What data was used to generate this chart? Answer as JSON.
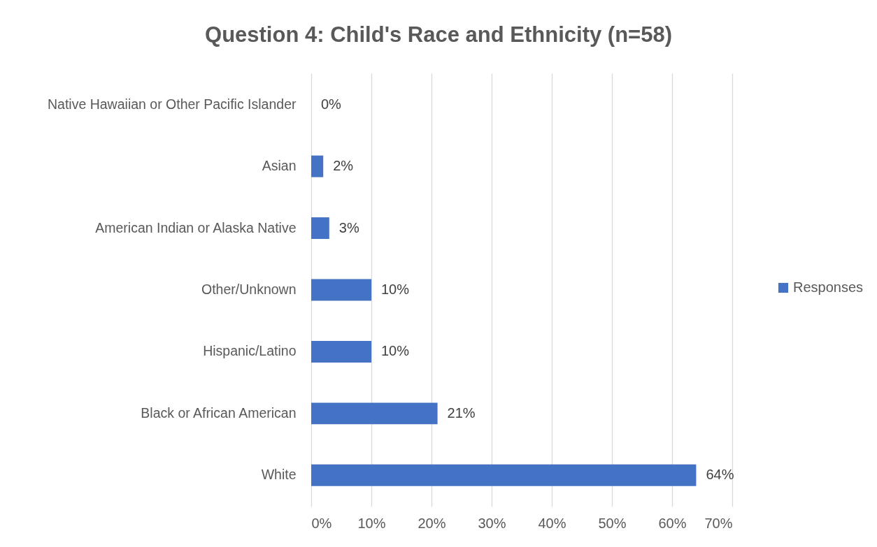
{
  "chart_data": {
    "type": "bar",
    "orientation": "horizontal",
    "title": "Question 4: Child's Race and Ethnicity (n=58)",
    "categories": [
      "Native Hawaiian or Other Pacific Islander",
      "Asian",
      "American Indian or Alaska Native",
      "Other/Unknown",
      "Hispanic/Latino",
      "Black or African American",
      "White"
    ],
    "series": [
      {
        "name": "Responses",
        "color": "#4472c4",
        "values": [
          0,
          2,
          3,
          10,
          10,
          21,
          64
        ],
        "value_labels": [
          "0%",
          "2%",
          "3%",
          "10%",
          "10%",
          "21%",
          "64%"
        ]
      }
    ],
    "xlim": [
      0,
      70
    ],
    "xticks": [
      {
        "value": 0,
        "label": "0%"
      },
      {
        "value": 10,
        "label": "10%"
      },
      {
        "value": 20,
        "label": "20%"
      },
      {
        "value": 30,
        "label": "30%"
      },
      {
        "value": 40,
        "label": "40%"
      },
      {
        "value": 50,
        "label": "50%"
      },
      {
        "value": 60,
        "label": "60%"
      },
      {
        "value": 70,
        "label": "70%"
      }
    ],
    "grid": "x",
    "legend": "right"
  }
}
